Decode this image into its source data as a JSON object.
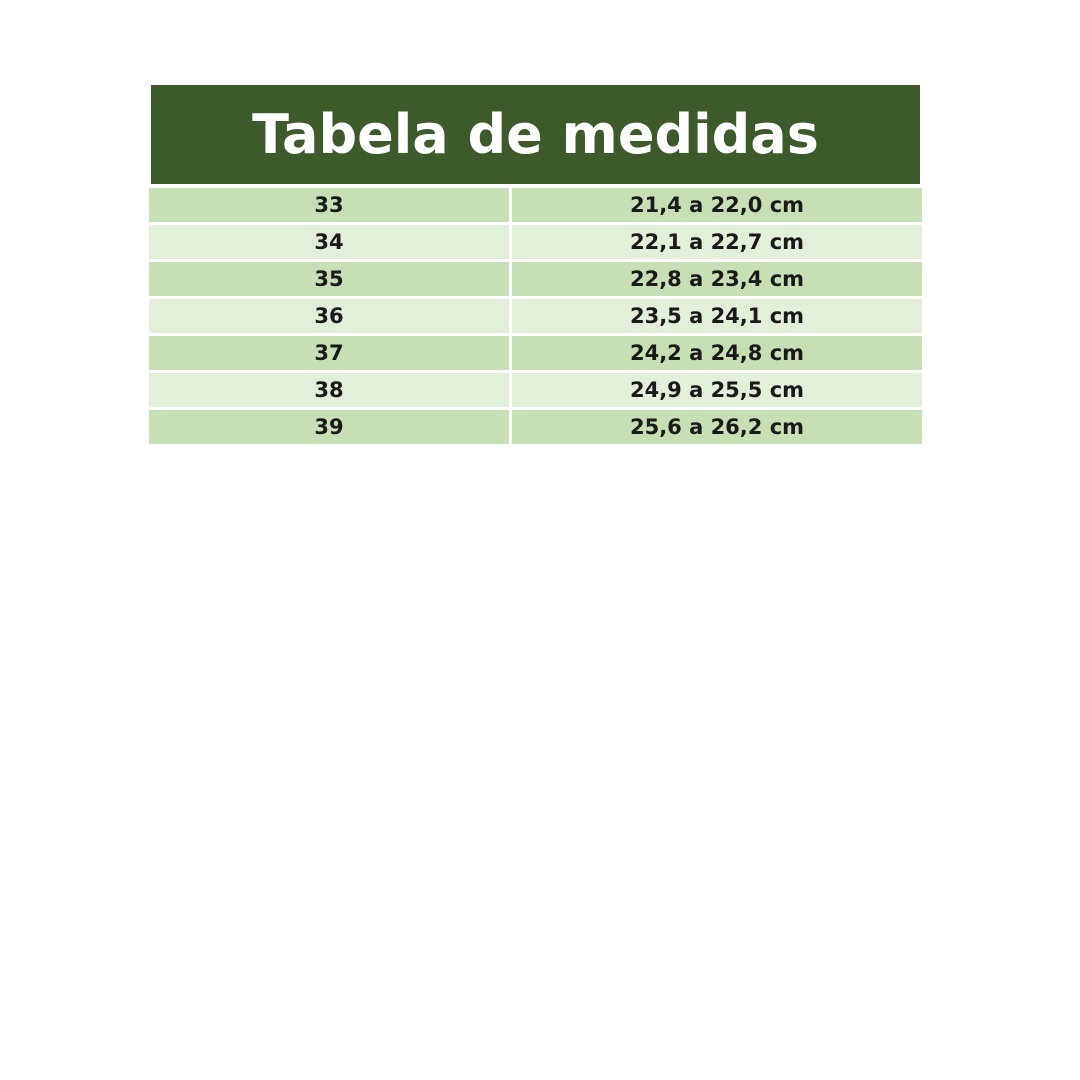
{
  "title": "Tabela de medidas",
  "colors": {
    "header": "#3d5a2b",
    "row_dark": "#c6dfb4",
    "row_light": "#e2efd9"
  },
  "rows": [
    {
      "size": "33",
      "measure": "21,4 a 22,0 cm"
    },
    {
      "size": "34",
      "measure": "22,1 a 22,7 cm"
    },
    {
      "size": "35",
      "measure": "22,8 a 23,4 cm"
    },
    {
      "size": "36",
      "measure": "23,5 a 24,1 cm"
    },
    {
      "size": "37",
      "measure": "24,2 a 24,8 cm"
    },
    {
      "size": "38",
      "measure": "24,9 a 25,5 cm"
    },
    {
      "size": "39",
      "measure": "25,6 a 26,2 cm"
    }
  ]
}
